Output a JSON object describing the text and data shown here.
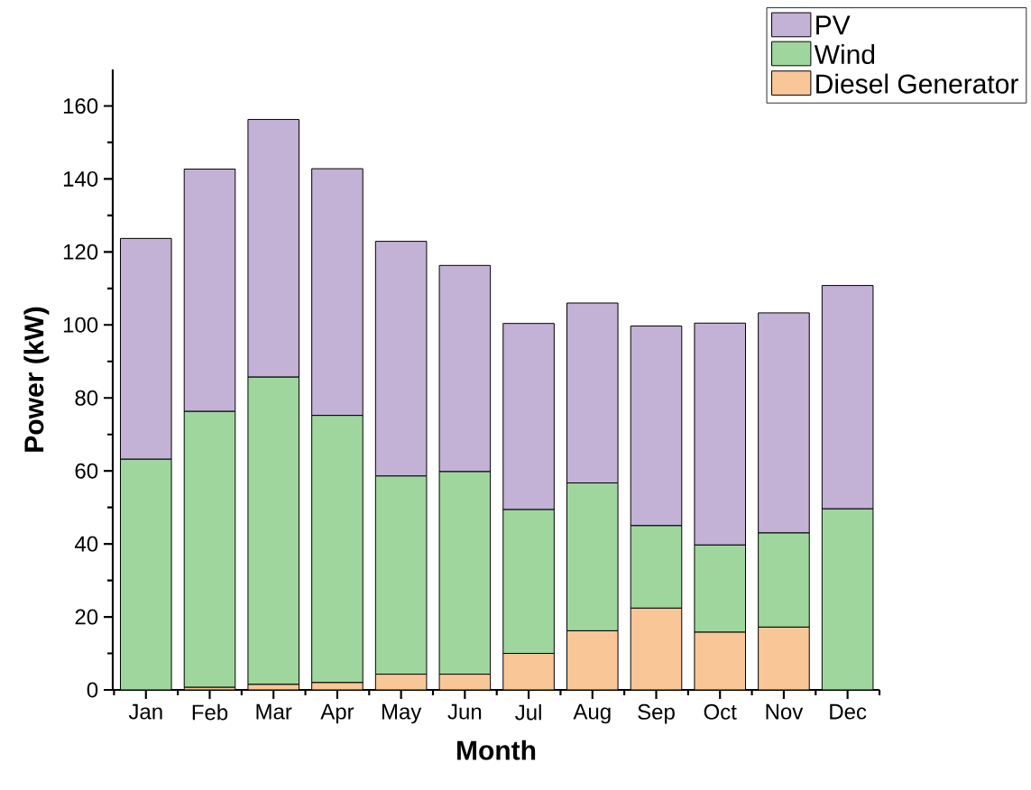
{
  "chart_data": {
    "type": "bar",
    "stacked": true,
    "xlabel": "Month",
    "ylabel": "Power (kW)",
    "categories": [
      "Jan",
      "Feb",
      "Mar",
      "Apr",
      "May",
      "Jun",
      "Jul",
      "Aug",
      "Sep",
      "Oct",
      "Nov",
      "Dec"
    ],
    "series": [
      {
        "name": "Diesel Generator",
        "color": "#f9c797",
        "values": [
          0,
          0.7,
          1.5,
          2.0,
          4.3,
          4.3,
          10.0,
          16.2,
          22.4,
          15.8,
          17.2,
          0
        ]
      },
      {
        "name": "Wind",
        "color": "#9fd69d",
        "values": [
          63.2,
          75.6,
          84.2,
          73.2,
          54.3,
          55.5,
          39.4,
          40.5,
          22.6,
          23.9,
          25.8,
          49.6
        ]
      },
      {
        "name": "PV",
        "color": "#c3b1d6",
        "values": [
          60.5,
          66.4,
          70.6,
          67.6,
          64.3,
          56.5,
          51.0,
          49.3,
          54.7,
          60.8,
          60.3,
          61.2
        ]
      }
    ],
    "ylim": [
      0,
      170
    ],
    "yticks": [
      0,
      20,
      40,
      60,
      80,
      100,
      120,
      140,
      160
    ],
    "legend": "top right"
  }
}
